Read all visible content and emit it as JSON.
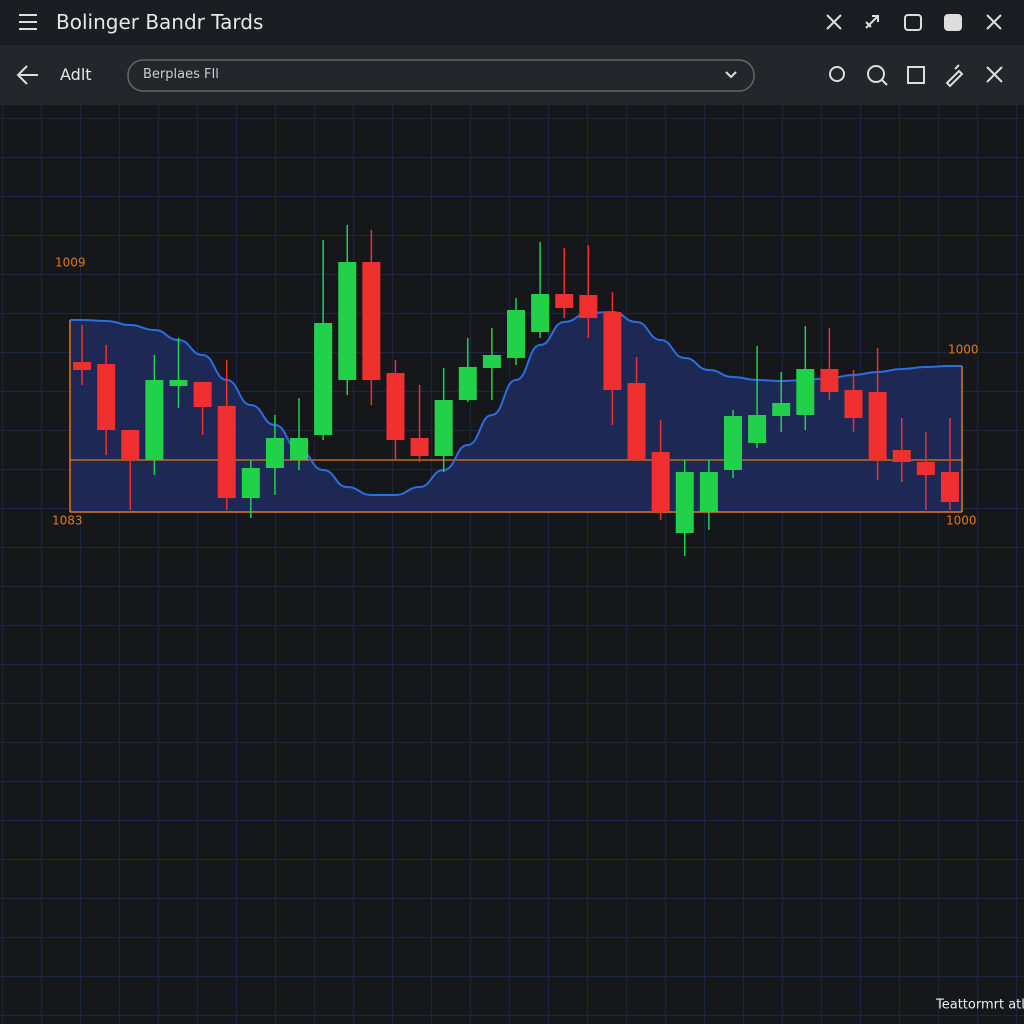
{
  "app": {
    "title": "Bolinger Bandr Tards",
    "back_label": "Adlt",
    "dropdown": "Berplaes FIl",
    "footer": "Teattormrt atl"
  },
  "chart_data": {
    "type": "candlestick",
    "categories": [
      null,
      null,
      null,
      null,
      null,
      null,
      null,
      null,
      null,
      null,
      null,
      null,
      null,
      null,
      null,
      null,
      null,
      null,
      null,
      null,
      null,
      null,
      null,
      null,
      null,
      null,
      null,
      null,
      null,
      null,
      null,
      null,
      null,
      null,
      null,
      null,
      null
    ],
    "open": [
      198,
      196,
      130,
      100,
      174,
      178,
      154,
      62,
      92,
      100,
      125,
      180,
      298,
      187,
      122,
      104,
      160,
      192,
      202,
      228,
      266,
      265,
      248,
      177,
      108,
      27,
      48,
      90,
      117,
      144,
      145,
      191,
      170,
      168,
      110,
      98,
      88
    ],
    "high": [
      235,
      215,
      130,
      205,
      222,
      178,
      200,
      100,
      145,
      162,
      320,
      335,
      330,
      200,
      175,
      192,
      222,
      232,
      262,
      318,
      312,
      315,
      268,
      203,
      140,
      100,
      100,
      150,
      214,
      188,
      234,
      232,
      190,
      212,
      142,
      128,
      142
    ],
    "low": [
      175,
      105,
      50,
      85,
      152,
      125,
      50,
      42,
      65,
      90,
      120,
      165,
      155,
      100,
      98,
      88,
      158,
      160,
      195,
      222,
      242,
      222,
      135,
      100,
      40,
      4,
      30,
      82,
      112,
      128,
      130,
      160,
      128,
      80,
      78,
      50,
      50
    ],
    "close": [
      190,
      130,
      100,
      180,
      180,
      153,
      62,
      92,
      122,
      122,
      237,
      298,
      180,
      120,
      104,
      160,
      193,
      205,
      250,
      266,
      252,
      242,
      170,
      100,
      48,
      88,
      88,
      144,
      145,
      157,
      191,
      168,
      142,
      100,
      98,
      85,
      58
    ],
    "up_color": "#22d14a",
    "down_color": "#f0302e",
    "band": {
      "upper": [
        240,
        239,
        235,
        230,
        220,
        205,
        180,
        155,
        135,
        110,
        90,
        73,
        65,
        65,
        73,
        90,
        115,
        145,
        180,
        215,
        238,
        247,
        248,
        238,
        220,
        202,
        190,
        183,
        180,
        179,
        180,
        182,
        185,
        188,
        191,
        193,
        194
      ],
      "middle": 100,
      "lower": 48,
      "line_color": "#2a6ee0",
      "fill": "#1e2b5e",
      "edge_color": "#e0781e"
    },
    "annotations": [
      "1009",
      "1000",
      "1083",
      "1000"
    ],
    "ylim": [
      0,
      340
    ]
  }
}
